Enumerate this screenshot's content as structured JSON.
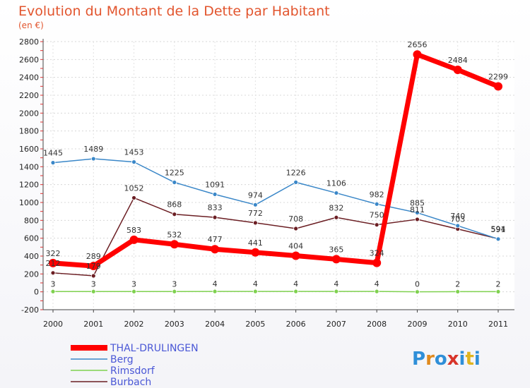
{
  "chart_data": {
    "type": "line",
    "title": "Evolution du Montant de la Dette par Habitant",
    "subtitle": "(en €)",
    "xlabel": "",
    "ylabel": "",
    "categories": [
      "2000",
      "2001",
      "2002",
      "2003",
      "2004",
      "2005",
      "2006",
      "2007",
      "2008",
      "2009",
      "2010",
      "2011"
    ],
    "ylim": [
      -200,
      2800
    ],
    "yticks": [
      -200,
      0,
      200,
      400,
      600,
      800,
      1000,
      1200,
      1400,
      1600,
      1800,
      2000,
      2200,
      2400,
      2600,
      2800
    ],
    "grid": true,
    "legend_position": "bottom-left",
    "series": [
      {
        "name": "THAL-DRULINGEN",
        "color": "#ff0000",
        "values": [
          322,
          289,
          583,
          532,
          477,
          441,
          404,
          365,
          324,
          2656,
          2484,
          2299
        ]
      },
      {
        "name": "Berg",
        "color": "#3a87c8",
        "values": [
          1445,
          1489,
          1453,
          1225,
          1091,
          974,
          1226,
          1106,
          982,
          885,
          740,
          591
        ]
      },
      {
        "name": "Rimsdorf",
        "color": "#7fd14f",
        "values": [
          3,
          3,
          3,
          3,
          4,
          4,
          4,
          4,
          4,
          0,
          2,
          2
        ]
      },
      {
        "name": "Burbach",
        "color": "#6b1e23",
        "values": [
          212,
          179,
          1052,
          868,
          833,
          772,
          708,
          832,
          750,
          811,
          703,
          594
        ]
      }
    ],
    "logo_text": "Proxiti"
  }
}
